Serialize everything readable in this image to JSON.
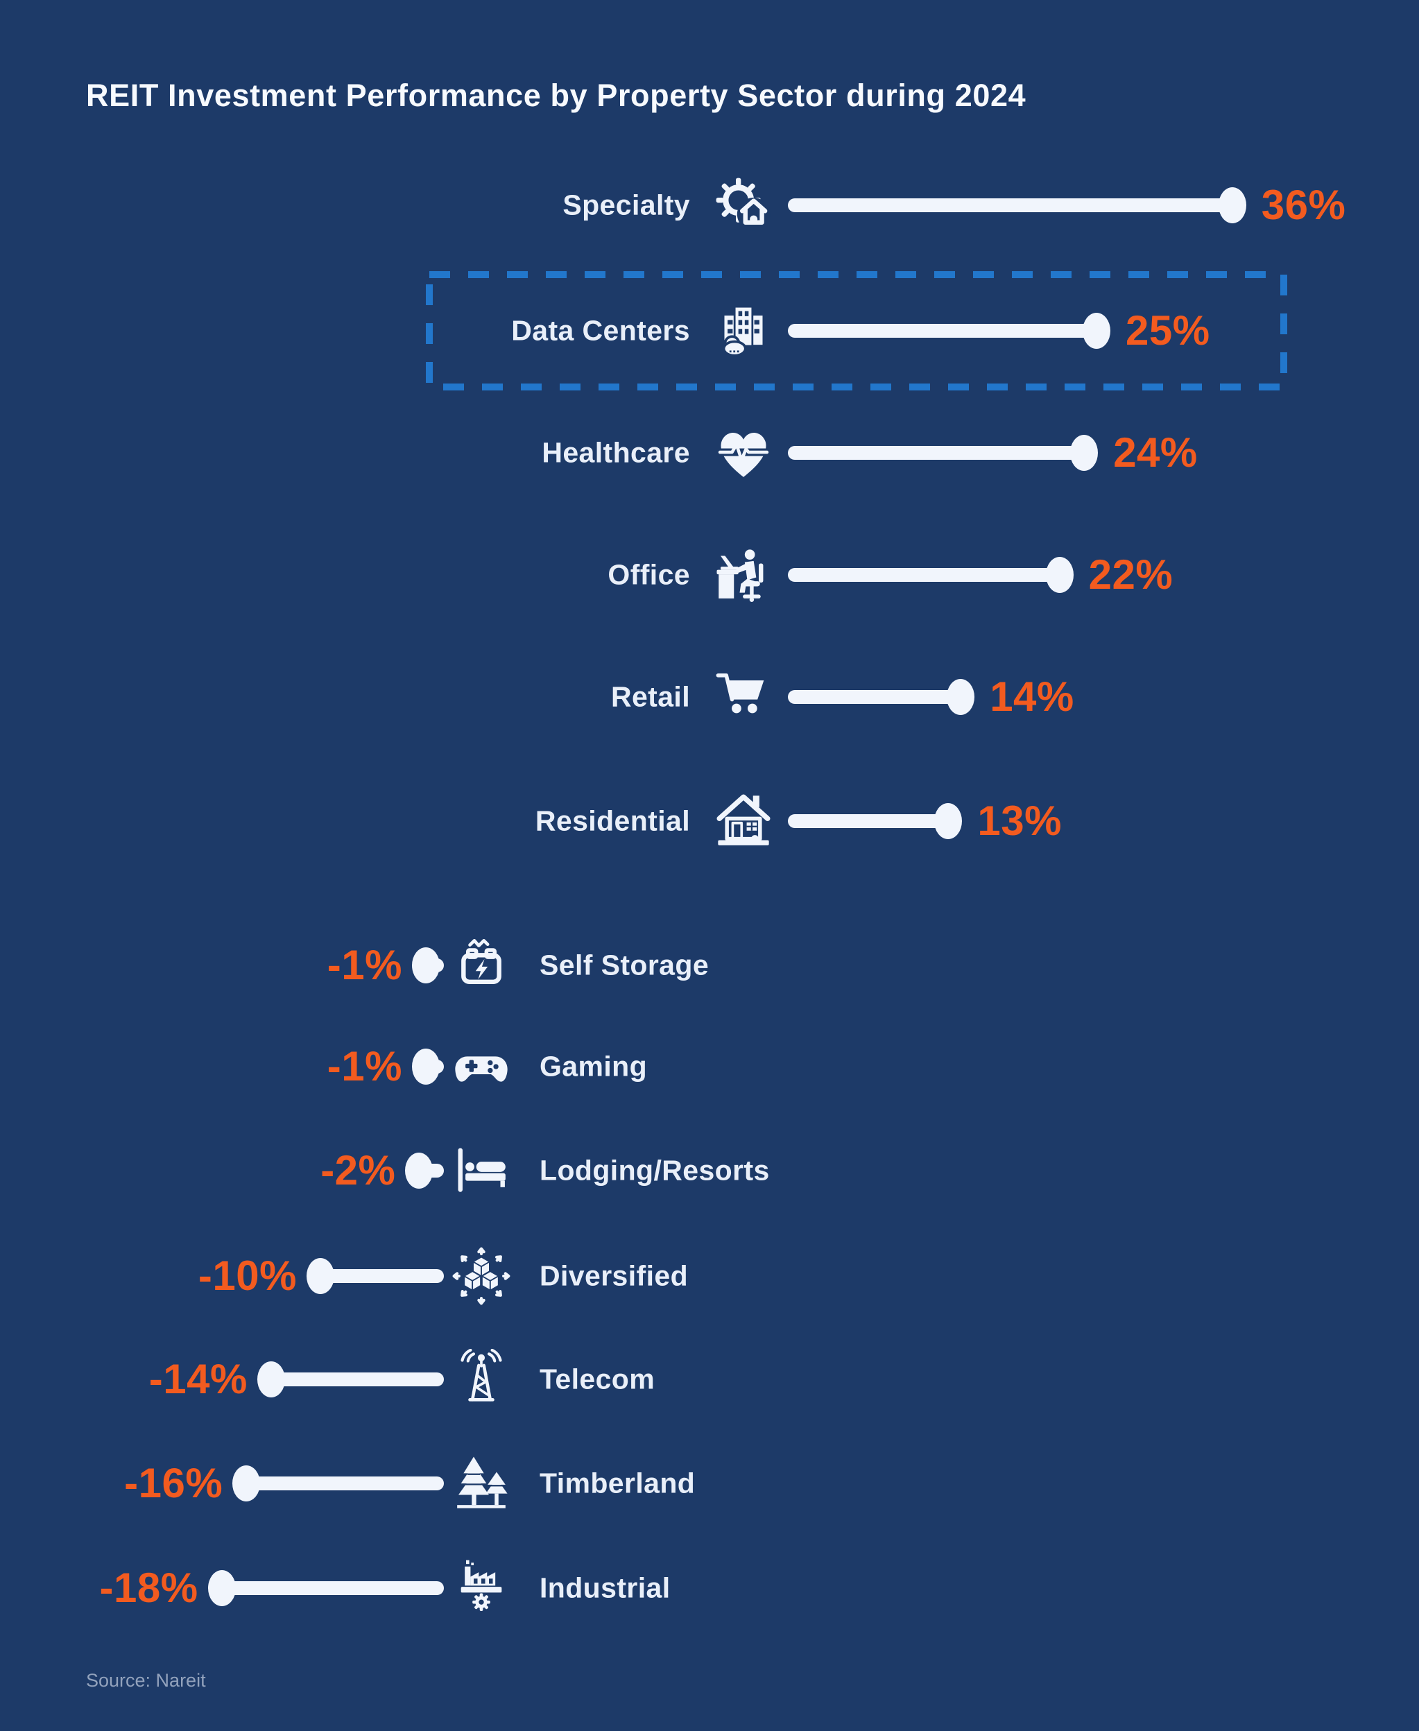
{
  "title": "REIT Investment Performance by Property Sector during 2024",
  "source": "Source: Nareit",
  "colors": {
    "background": "#1D3A68",
    "accent_orange": "#F35B1F",
    "lollipop": "#F1F5FC",
    "label_text": "#E9EFF9",
    "highlight_dash": "#2277CC",
    "source_text": "#92A2BC"
  },
  "chart_data": {
    "type": "bar",
    "variant": "diverging-lollipop",
    "orientation": "horizontal",
    "title": "REIT Investment Performance by Property Sector during 2024",
    "unit": "%",
    "xlim": [
      -18,
      36
    ],
    "grid": false,
    "legend": false,
    "source": "Nareit",
    "highlighted_category": "Data Centers",
    "categories": [
      "Specialty",
      "Data Centers",
      "Healthcare",
      "Office",
      "Retail",
      "Residential",
      "Self Storage",
      "Gaming",
      "Lodging/Resorts",
      "Diversified",
      "Telecom",
      "Timberland",
      "Industrial"
    ],
    "values": [
      36,
      25,
      24,
      22,
      14,
      13,
      -1,
      -1,
      -2,
      -10,
      -14,
      -16,
      -18
    ],
    "items": [
      {
        "label": "Specialty",
        "value": 36,
        "display": "36%",
        "icon": "gear-home-icon",
        "highlighted": false
      },
      {
        "label": "Data Centers",
        "value": 25,
        "display": "25%",
        "icon": "server-cloud-icon",
        "highlighted": true
      },
      {
        "label": "Healthcare",
        "value": 24,
        "display": "24%",
        "icon": "heart-pulse-icon",
        "highlighted": false
      },
      {
        "label": "Office",
        "value": 22,
        "display": "22%",
        "icon": "desk-worker-icon",
        "highlighted": false
      },
      {
        "label": "Retail",
        "value": 14,
        "display": "14%",
        "icon": "shopping-cart-icon",
        "highlighted": false
      },
      {
        "label": "Residential",
        "value": 13,
        "display": "13%",
        "icon": "house-icon",
        "highlighted": false
      },
      {
        "label": "Self Storage",
        "value": -1,
        "display": "-1%",
        "icon": "battery-storage-icon",
        "highlighted": false
      },
      {
        "label": "Gaming",
        "value": -1,
        "display": "-1%",
        "icon": "gamepad-icon",
        "highlighted": false
      },
      {
        "label": "Lodging/Resorts",
        "value": -2,
        "display": "-2%",
        "icon": "bed-icon",
        "highlighted": false
      },
      {
        "label": "Diversified",
        "value": -10,
        "display": "-10%",
        "icon": "cubes-arrows-icon",
        "highlighted": false
      },
      {
        "label": "Telecom",
        "value": -14,
        "display": "-14%",
        "icon": "radio-tower-icon",
        "highlighted": false
      },
      {
        "label": "Timberland",
        "value": -16,
        "display": "-16%",
        "icon": "pine-trees-icon",
        "highlighted": false
      },
      {
        "label": "Industrial",
        "value": -18,
        "display": "-18%",
        "icon": "factory-icon",
        "highlighted": false
      }
    ]
  }
}
